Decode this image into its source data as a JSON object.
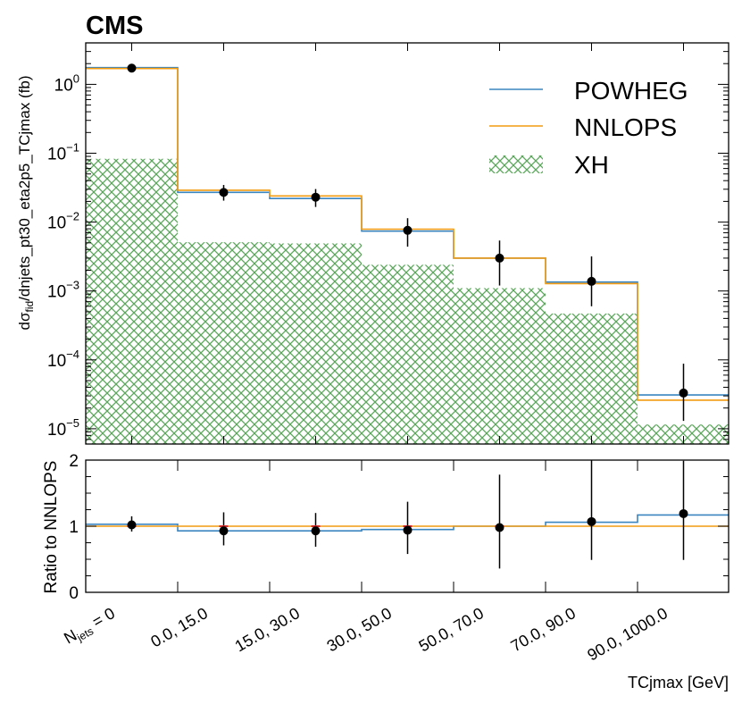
{
  "experiment_label": "CMS",
  "colors": {
    "powheg": "#3b85c0",
    "nnlops": "#f39c12",
    "xh": "#5ba55b",
    "data": "#000000",
    "ratio_marker": "#d62728"
  },
  "chart_data": [
    {
      "type": "histogram",
      "panel": "main",
      "yscale": "log",
      "ylabel_main": "dσ",
      "ylabel_sub": "fid",
      "ylabel_rest": "/dnjets_pt30_eta2p5_TCjmax (fb)",
      "ylim": [
        6e-06,
        4
      ],
      "ytick_labels": [
        {
          "mant": "10",
          "exp": "0",
          "value": 1
        },
        {
          "mant": "10",
          "exp": "−1",
          "value": 0.1
        },
        {
          "mant": "10",
          "exp": "−2",
          "value": 0.01
        },
        {
          "mant": "10",
          "exp": "−3",
          "value": 0.001
        },
        {
          "mant": "10",
          "exp": "−4",
          "value": 0.0001
        },
        {
          "mant": "10",
          "exp": "−5",
          "value": 1e-05
        }
      ],
      "legend_position": "top-right",
      "series": [
        {
          "name": "POWHEG",
          "style": "step",
          "values": [
            1.75,
            0.027,
            0.022,
            0.0074,
            0.003,
            0.00135,
            3.1e-05
          ]
        },
        {
          "name": "NNLOPS",
          "style": "step",
          "values": [
            1.7,
            0.029,
            0.024,
            0.0079,
            0.003,
            0.00128,
            2.6e-05
          ]
        },
        {
          "name": "XH",
          "style": "hatched",
          "values": [
            0.083,
            0.0051,
            0.0049,
            0.0024,
            0.0011,
            0.00047,
            1.15e-05
          ]
        },
        {
          "name": "data",
          "style": "points",
          "values": [
            1.72,
            0.027,
            0.023,
            0.0076,
            0.003,
            0.00138,
            3.3e-05
          ],
          "err_low": [
            0.02,
            0.0065,
            0.0064,
            0.0032,
            0.0018,
            0.00078,
            2e-05
          ],
          "err_high": [
            0.02,
            0.0076,
            0.0072,
            0.0038,
            0.0024,
            0.0018,
            5.5e-05
          ]
        }
      ]
    },
    {
      "type": "histogram",
      "panel": "ratio",
      "ylabel": "Ratio to NNLOPS",
      "ylim": [
        0,
        2
      ],
      "ytick_labels": [
        "0",
        "1",
        "2"
      ],
      "series": [
        {
          "name": "POWHEG",
          "style": "step",
          "values": [
            1.03,
            0.93,
            0.93,
            0.95,
            1.0,
            1.06,
            1.17
          ]
        },
        {
          "name": "NNLOPS",
          "style": "step",
          "values": [
            1.0,
            1.0,
            1.0,
            1.0,
            1.0,
            1.0,
            1.0
          ]
        },
        {
          "name": "data",
          "style": "points",
          "values": [
            1.02,
            0.93,
            0.93,
            0.94,
            0.98,
            1.07,
            1.19
          ],
          "err_low": [
            0.1,
            0.22,
            0.24,
            0.36,
            0.62,
            0.58,
            0.7
          ],
          "err_high": [
            0.13,
            0.28,
            0.27,
            0.43,
            0.8,
            0.93,
            0.8
          ]
        }
      ]
    }
  ],
  "x_axis": {
    "label": "TCjmax [GeV]",
    "first_tick": {
      "main": "N",
      "sub": "jets",
      "rest": " = 0"
    },
    "tick_labels": [
      "0.0, 15.0",
      "15.0, 30.0",
      "30.0, 50.0",
      "50.0, 70.0",
      "70.0, 90.0",
      "90.0, 1000.0"
    ]
  }
}
